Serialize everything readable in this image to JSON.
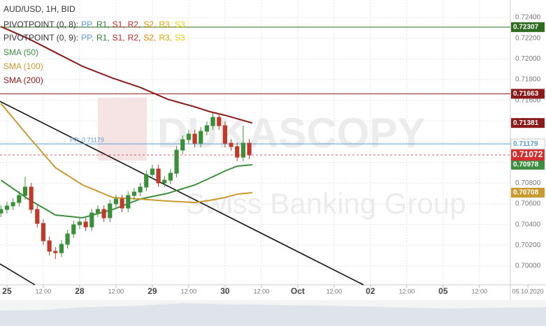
{
  "chart_data": {
    "type": "candlestick",
    "title": "AUD/USD, 1H, BID",
    "pivot_legends": [
      {
        "name": "PIVOTPOINT (0, 8):",
        "items": [
          {
            "name": "PP,",
            "color": "#5b9bd5"
          },
          {
            "name": "R1,",
            "color": "#2e7d32"
          },
          {
            "name": "S1,",
            "color": "#c62828"
          },
          {
            "name": "R2,",
            "color": "#c62828"
          },
          {
            "name": "S2,",
            "color": "#e08a00"
          },
          {
            "name": "R3,",
            "color": "#e0a800"
          },
          {
            "name": "S3",
            "color": "#e6d200"
          }
        ]
      },
      {
        "name": "PIVOTPOINT (0, 9):",
        "items": [
          {
            "name": "PP,",
            "color": "#5b9bd5"
          },
          {
            "name": "R1,",
            "color": "#2e7d32"
          },
          {
            "name": "S1,",
            "color": "#c62828"
          },
          {
            "name": "R2,",
            "color": "#c62828"
          },
          {
            "name": "S2,",
            "color": "#e08a00"
          },
          {
            "name": "R3,",
            "color": "#e0a800"
          },
          {
            "name": "S3",
            "color": "#e6d200"
          }
        ]
      }
    ],
    "x": [
      -2,
      0,
      2,
      4,
      6,
      8,
      10,
      12,
      14,
      16,
      18,
      20,
      22,
      24,
      26,
      28,
      30,
      32,
      34,
      36,
      38,
      40,
      42,
      44,
      46,
      48,
      50,
      52,
      54,
      56,
      58,
      60,
      62,
      64,
      66,
      68,
      70,
      72,
      74,
      76,
      78,
      80
    ],
    "open": [
      0.70512,
      0.70546,
      0.7058,
      0.70613,
      0.70681,
      0.70762,
      0.70546,
      0.70411,
      0.70243,
      0.70142,
      0.70128,
      0.70209,
      0.7031,
      0.70398,
      0.70425,
      0.70377,
      0.70512,
      0.70546,
      0.70465,
      0.706,
      0.70647,
      0.70559,
      0.70681,
      0.70714,
      0.70762,
      0.70883,
      0.70937,
      0.70802,
      0.70829,
      0.70896,
      0.71119,
      0.7122,
      0.71274,
      0.71186,
      0.71301,
      0.71355,
      0.71436,
      0.71355,
      0.71186,
      0.71153,
      0.71051,
      0.71186
    ],
    "high": [
      0.70586,
      0.7062,
      0.70653,
      0.70721,
      0.70862,
      0.70802,
      0.70586,
      0.70451,
      0.70283,
      0.70182,
      0.70249,
      0.7035,
      0.70438,
      0.70465,
      0.70465,
      0.70552,
      0.70586,
      0.70586,
      0.7064,
      0.70687,
      0.70687,
      0.70721,
      0.70754,
      0.70802,
      0.70923,
      0.70977,
      0.70977,
      0.70869,
      0.70936,
      0.71159,
      0.7126,
      0.71314,
      0.71314,
      0.71341,
      0.71395,
      0.71476,
      0.71476,
      0.71395,
      0.71226,
      0.71193,
      0.71356,
      0.71226
    ],
    "low": [
      0.70472,
      0.70506,
      0.7054,
      0.70573,
      0.70641,
      0.70506,
      0.70371,
      0.70203,
      0.70102,
      0.70068,
      0.70088,
      0.70169,
      0.7027,
      0.70358,
      0.70337,
      0.70337,
      0.70472,
      0.70425,
      0.70425,
      0.7056,
      0.70519,
      0.70519,
      0.70641,
      0.70674,
      0.70722,
      0.70843,
      0.70762,
      0.70762,
      0.70789,
      0.70856,
      0.71079,
      0.7118,
      0.71146,
      0.71146,
      0.71261,
      0.71315,
      0.71315,
      0.71146,
      0.71113,
      0.71011,
      0.71011,
      0.71032
    ],
    "close": [
      0.70546,
      0.7058,
      0.70613,
      0.70681,
      0.70762,
      0.70546,
      0.70411,
      0.70243,
      0.70142,
      0.70128,
      0.70209,
      0.7031,
      0.70398,
      0.70425,
      0.70377,
      0.70512,
      0.70546,
      0.70465,
      0.706,
      0.70647,
      0.70559,
      0.70681,
      0.70714,
      0.70762,
      0.70883,
      0.70937,
      0.70802,
      0.70829,
      0.70896,
      0.71119,
      0.7122,
      0.71274,
      0.71186,
      0.71301,
      0.71355,
      0.71436,
      0.71355,
      0.71186,
      0.71153,
      0.71051,
      0.71186,
      0.71072
    ],
    "up_color": "#3a8f3a",
    "down_color": "#c0392b",
    "current_color": "#d32f2f",
    "series": [
      {
        "name": "SMA (50)",
        "color": "#3e8e41",
        "x": [
          -2,
          7,
          16,
          25,
          35,
          44,
          53,
          62,
          67,
          72,
          76,
          81
        ],
        "values": [
          0.70829,
          0.70647,
          0.70492,
          0.70465,
          0.70546,
          0.70647,
          0.70701,
          0.70782,
          0.70849,
          0.70917,
          0.70964,
          0.70978
        ]
      },
      {
        "name": "SMA (100)",
        "color": "#c99a2e",
        "x": [
          -2,
          7,
          16,
          25,
          35,
          44,
          53,
          62,
          67,
          72,
          76,
          81
        ],
        "values": [
          0.7157,
          0.71254,
          0.7095,
          0.70782,
          0.70661,
          0.70647,
          0.70627,
          0.70613,
          0.70634,
          0.70661,
          0.70694,
          0.70708
        ]
      },
      {
        "name": "SMA (200)",
        "color": "#8b1a1a",
        "x": [
          -2,
          7,
          16,
          25,
          35,
          44,
          53,
          62,
          67,
          72,
          76,
          81
        ],
        "values": [
          0.72312,
          0.72197,
          0.72062,
          0.71928,
          0.71813,
          0.71725,
          0.71611,
          0.71537,
          0.7149,
          0.71456,
          0.71422,
          0.71381
        ]
      }
    ],
    "levels": [
      {
        "value": 0.72307,
        "color": "#2e6b1f"
      },
      {
        "value": 0.71663,
        "color": "#8b1a1a"
      },
      {
        "value": 0.71179,
        "color": "#5b9bd5",
        "label": "PP: 0.71179"
      }
    ],
    "trendlines": [
      {
        "color": "#111111",
        "x": [
          -2.3,
          117.7
        ],
        "values": [
          0.7159,
          0.69818
        ]
      },
      {
        "color": "#111111",
        "x": [
          -2.3,
          9.2
        ],
        "values": [
          0.7002,
          0.69818
        ]
      }
    ],
    "watermark": {
      "title": "DUKASCOPY",
      "subtitle": "Swiss Banking Group"
    },
    "xlim": [
      -2.3,
      166.2
    ],
    "ylim": [
      0.69818,
      0.72569
    ],
    "xticks": [
      {
        "value": 0,
        "label": "25"
      },
      {
        "value": 12,
        "label": "12:00"
      },
      {
        "value": 24,
        "label": "28"
      },
      {
        "value": 36,
        "label": "12:00"
      },
      {
        "value": 48,
        "label": "29"
      },
      {
        "value": 60,
        "label": "12:00"
      },
      {
        "value": 72,
        "label": "30"
      },
      {
        "value": 84,
        "label": "12:00"
      },
      {
        "value": 96,
        "label": "Oct"
      },
      {
        "value": 108,
        "label": "12:00"
      },
      {
        "value": 120,
        "label": "02"
      },
      {
        "value": 132,
        "label": "12:00"
      },
      {
        "value": 144,
        "label": "05"
      },
      {
        "value": 156,
        "label": "12:00"
      },
      {
        "value": 172,
        "label": "05.10.2020"
      }
    ],
    "yticks": [
      {
        "value": 0.7,
        "label": "0.70000"
      },
      {
        "value": 0.702,
        "label": "0.70200"
      },
      {
        "value": 0.704,
        "label": "0.70400"
      },
      {
        "value": 0.706,
        "label": "0.70600"
      },
      {
        "value": 0.708,
        "label": "0.70800"
      },
      {
        "value": 0.71,
        "label": "0.71000"
      },
      {
        "value": 0.712,
        "label": "0.71200"
      },
      {
        "value": 0.714,
        "label": "0.71400"
      },
      {
        "value": 0.716,
        "label": "0.71600"
      },
      {
        "value": 0.718,
        "label": "0.71800"
      },
      {
        "value": 0.72,
        "label": "0.72000"
      },
      {
        "value": 0.722,
        "label": "0.72200"
      },
      {
        "value": 0.724,
        "label": "0.72400"
      }
    ],
    "grid": true
  }
}
